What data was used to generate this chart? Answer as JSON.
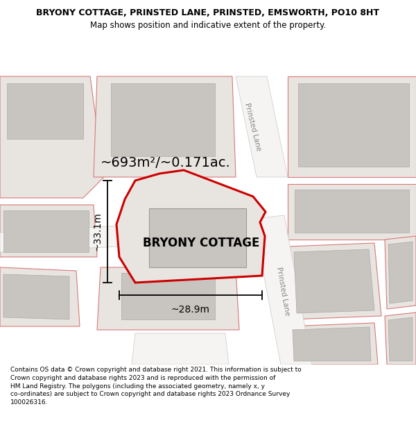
{
  "title": "BRYONY COTTAGE, PRINSTED LANE, PRINSTED, EMSWORTH, PO10 8HT",
  "subtitle": "Map shows position and indicative extent of the property.",
  "footer": "Contains OS data © Crown copyright and database right 2021. This information is subject to\nCrown copyright and database rights 2023 and is reproduced with the permission of\nHM Land Registry. The polygons (including the associated geometry, namely x, y\nco-ordinates) are subject to Crown copyright and database rights 2023 Ordnance Survey\n100026316.",
  "area_label": "~693m²/~0.171ac.",
  "property_label": "BRYONY COTTAGE",
  "dim_horizontal": "~28.9m",
  "dim_vertical": "~33.1m",
  "road_label_top": "Prinsted Lane",
  "road_label_bottom": "Prinsted Lane",
  "map_bg": "#edeae5",
  "parcel_fill": "#e8e5e1",
  "building_fill": "#c8c5c0",
  "road_fill": "#f5f4f2",
  "parcel_edge": "#d87878",
  "main_edge": "#cc0000",
  "main_fill": "#e8e5e0",
  "road_edge": "#c8c8c6",
  "text_road": "#888888"
}
